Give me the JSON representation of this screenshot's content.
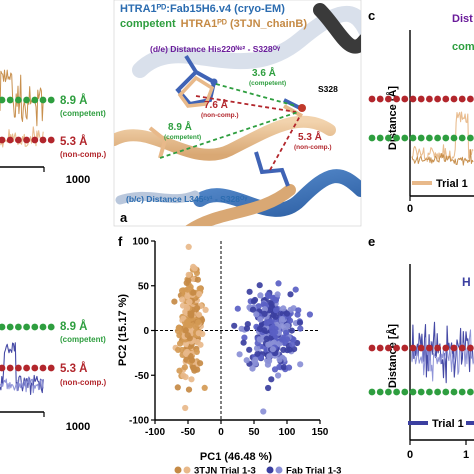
{
  "colors": {
    "brown": "#c58a45",
    "tan": "#e8b98a",
    "navy": "#3b3fa0",
    "lavender": "#8a8fd6",
    "green_dot": "#2e9e3f",
    "red_dot": "#b2262c",
    "green_text": "#2e9e3f",
    "red_text": "#b2262c",
    "purple_text": "#6a1b9a",
    "blue_title": "#2b6cb0"
  },
  "left_top": {
    "x_end_label": "1000",
    "competent_value": "8.9 Å",
    "competent_label": "(competent)",
    "noncomp_value": "5.3 Å",
    "noncomp_label": "(non-comp.)"
  },
  "left_bottom": {
    "x_end_label": "1000",
    "competent_value": "8.9 Å",
    "competent_label": "(competent)",
    "noncomp_value": "5.3 Å",
    "noncomp_label": "(non-comp.)"
  },
  "structure_a": {
    "panel_letter": "a",
    "title_line1": "HTRA1ᴾᴰ:Fab15H6.v4 (cryo-EM)",
    "title_line2_green": "competent",
    "title_line2_rest": "HTRA1ᴾᴰ (3TJN_chainB)",
    "distance_de": "(d/e) Distance His220ᴺᵉ² - S328ᴼᵞ",
    "distance_bc": "(b/c) Distance L345ᶜʸ¹ - S328ᴼᵞ",
    "label_s328": "S328",
    "d1_value": "3.6 Å",
    "d1_label": "(competent)",
    "d2_value": "7.6 Å",
    "d2_label": "(non-comp.)",
    "d3_value": "8.9 Å",
    "d3_label": "(competent)",
    "d4_value": "5.3 Å",
    "d4_label": "(non-comp.)"
  },
  "panel_c": {
    "letter": "c",
    "ylabel": "Distance [Å]",
    "x_tick_0": "0",
    "title_fragment": "Dist",
    "competent_fragment": "compe",
    "legend_trial": "Trial 1"
  },
  "panel_e": {
    "letter": "e",
    "ylabel": "Distance [Å]",
    "x_tick_0": "0",
    "x_tick_1": "1",
    "title_fragment": "H",
    "legend_trial": "Trial 1"
  },
  "panel_f": {
    "letter": "f",
    "legend_3tjn": "3TJN Trial 1-3",
    "legend_fab": "Fab Trial 1-3"
  },
  "chart_data": {
    "type": "scatter",
    "xlabel": "PC1 (46.48 %)",
    "ylabel": "PC2 (15.17 %)",
    "xlim": [
      -100,
      150
    ],
    "ylim": [
      -100,
      100
    ],
    "x_ticks": [
      -100,
      -50,
      0,
      50,
      100,
      150
    ],
    "y_ticks": [
      -100,
      -50,
      0,
      50,
      100
    ],
    "grid": false,
    "zero_lines": "dashed",
    "series": [
      {
        "name": "3TJN Trial 1-3",
        "color": "#c58a45",
        "cluster_center": [
          -45,
          5
        ],
        "x_spread": 20,
        "y_spread": 60
      },
      {
        "name": "Fab Trial 1-3",
        "color": "#3b3fa0",
        "cluster_center": [
          75,
          0
        ],
        "x_spread": 42,
        "y_spread": 50
      }
    ]
  }
}
